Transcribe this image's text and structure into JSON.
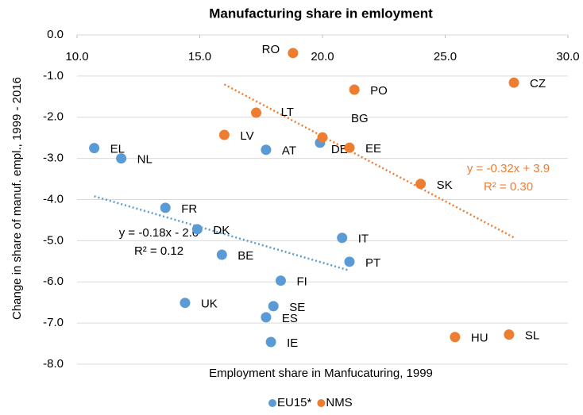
{
  "chart_data": {
    "type": "scatter",
    "title": "Manufacturing share in emloyment",
    "x_label": "Employment share in Manfucaturing, 1999",
    "y_label": "Change in share of manuf. empl., 1999 - 2016",
    "xlim": [
      10,
      30
    ],
    "xticks": [
      {
        "value": 10,
        "label": "10.0"
      },
      {
        "value": 15,
        "label": "15.0"
      },
      {
        "value": 20,
        "label": "20.0"
      },
      {
        "value": 25,
        "label": "25.0"
      },
      {
        "value": 30,
        "label": "30.0"
      }
    ],
    "ylim": [
      -8,
      0
    ],
    "yticks": [
      {
        "value": 0,
        "label": "0.0"
      },
      {
        "value": -1,
        "label": "-1.0"
      },
      {
        "value": -2,
        "label": "-2.0"
      },
      {
        "value": -3,
        "label": "-3.0"
      },
      {
        "value": -4,
        "label": "-4.0"
      },
      {
        "value": -5,
        "label": "-5.0"
      },
      {
        "value": -6,
        "label": "-6.0"
      },
      {
        "value": -7,
        "label": "-7.0"
      },
      {
        "value": -8,
        "label": "-8.0"
      }
    ],
    "grid": true,
    "legend": "bottom",
    "series": [
      {
        "name": "EU15*",
        "color": "#5b9bd5",
        "labels": [
          "EL",
          "NL",
          "FR",
          "DK",
          "BE",
          "UK",
          "AT",
          "DE",
          "IT",
          "PT",
          "FI",
          "SE",
          "ES",
          "IE"
        ],
        "x": [
          10.7,
          11.8,
          13.6,
          14.9,
          15.9,
          14.4,
          17.7,
          19.9,
          20.8,
          21.1,
          18.3,
          18.0,
          17.7,
          17.9
        ],
        "values": [
          -2.75,
          -3.0,
          -4.2,
          -4.72,
          -5.34,
          -6.51,
          -2.79,
          -2.62,
          -4.93,
          -5.51,
          -5.97,
          -6.59,
          -6.86,
          -7.46
        ],
        "trend_equation": "y = -0.18x - 2.0",
        "trend_r2": "R² = 0.12",
        "trend_text_color": "#000000"
      },
      {
        "name": "NMS",
        "color": "#ed7d31",
        "labels": [
          "RO",
          "PO",
          "CZ",
          "LT",
          "LV",
          "BG",
          "EE",
          "SK",
          "HU",
          "SL"
        ],
        "x": [
          18.8,
          21.3,
          27.8,
          17.3,
          16.0,
          20.0,
          21.1,
          24.0,
          25.4,
          27.6
        ],
        "values": [
          -0.44,
          -1.33,
          -1.16,
          -1.89,
          -2.43,
          -2.49,
          -2.74,
          -3.62,
          -7.34,
          -7.28
        ],
        "trend_equation": "y = -0.32x + 3.9",
        "trend_r2": "R² = 0.30",
        "trend_text_color": "#ed7d31"
      }
    ]
  }
}
